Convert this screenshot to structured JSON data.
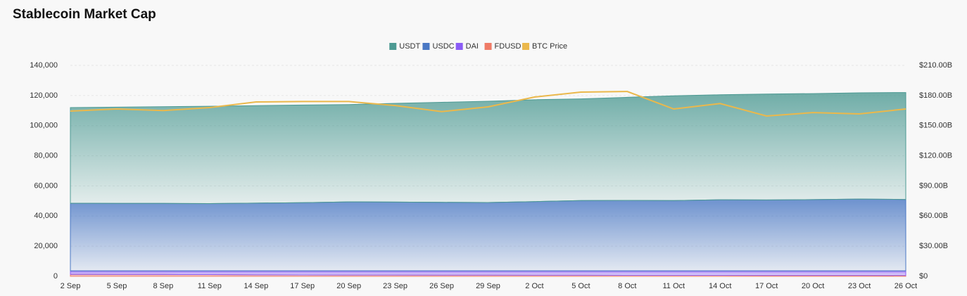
{
  "chart_data": {
    "type": "area",
    "title": "Stablecoin Market Cap",
    "categories": [
      "2 Sep",
      "5 Sep",
      "8 Sep",
      "11 Sep",
      "14 Sep",
      "17 Sep",
      "20 Sep",
      "23 Sep",
      "26 Sep",
      "29 Sep",
      "2 Oct",
      "5 Oct",
      "8 Oct",
      "11 Oct",
      "14 Oct",
      "17 Oct",
      "20 Oct",
      "23 Oct",
      "26 Oct"
    ],
    "stacked": true,
    "series": [
      {
        "name": "FDUSD",
        "color": "#ef7b66",
        "values": [
          1300,
          1250,
          1200,
          1150,
          1000,
          950,
          900,
          850,
          800,
          800,
          750,
          750,
          700,
          700,
          700,
          650,
          650,
          650,
          600
        ]
      },
      {
        "name": "DAI",
        "color": "#8b5cf6",
        "values": [
          2300,
          2350,
          2400,
          2450,
          2600,
          2650,
          2700,
          2750,
          2800,
          2800,
          2850,
          2850,
          2900,
          2900,
          2900,
          2950,
          2950,
          2950,
          3000
        ]
      },
      {
        "name": "USDC",
        "color": "#4a78c4",
        "values": [
          44900,
          44800,
          44800,
          44700,
          45000,
          45300,
          45800,
          45700,
          45500,
          45400,
          46000,
          46700,
          46800,
          46700,
          47200,
          47100,
          47300,
          47700,
          47400
        ]
      },
      {
        "name": "USDT",
        "color": "#4d9a93",
        "values": [
          63500,
          63900,
          64200,
          64600,
          64700,
          64800,
          64600,
          65500,
          66400,
          67200,
          67600,
          67500,
          68400,
          69500,
          69700,
          70300,
          70400,
          70500,
          71000
        ]
      },
      {
        "name": "BTC Price",
        "color": "#ebb84b",
        "type": "line",
        "axis": "y2",
        "values": [
          164.5,
          166.6,
          165,
          168,
          173.6,
          174,
          174,
          170,
          164,
          168.7,
          178.5,
          183.4,
          184,
          166.6,
          172,
          159.6,
          163,
          161.7,
          166.6
        ]
      }
    ],
    "legend_order": [
      "USDT",
      "USDC",
      "DAI",
      "FDUSD",
      "BTC Price"
    ],
    "ylim": [
      0,
      140000
    ],
    "yticks": [
      0,
      {
        "value": 20000,
        "label": "20,000"
      },
      {
        "value": 40000,
        "label": "40,000"
      },
      {
        "value": 60000,
        "label": "60,000"
      },
      {
        "value": 80000,
        "label": "80,000"
      },
      {
        "value": 100000,
        "label": "100,000"
      },
      {
        "value": 120000,
        "label": "120,000"
      },
      {
        "value": 140000,
        "label": "140,000"
      }
    ],
    "y2lim": [
      0,
      210
    ],
    "y2ticks": [
      {
        "value": 0,
        "label": "$0"
      },
      {
        "value": 30,
        "label": "$30.00B"
      },
      {
        "value": 60,
        "label": "$60.00B"
      },
      {
        "value": 90,
        "label": "$90.00B"
      },
      {
        "value": 120,
        "label": "$120.00B"
      },
      {
        "value": 150,
        "label": "$150.00B"
      },
      {
        "value": 180,
        "label": "$180.00B"
      },
      {
        "value": 210,
        "label": "$210.00B"
      }
    ],
    "grid": true
  }
}
